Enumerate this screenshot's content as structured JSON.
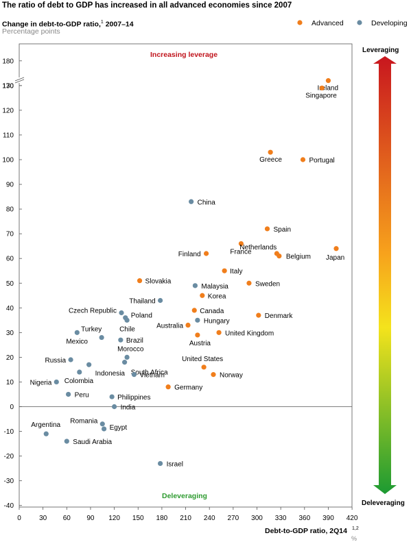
{
  "header": {
    "title": "The ratio of debt to GDP has increased in all advanced economies since 2007",
    "subtitle": "Change in debt-to-GDP ratio,",
    "subtitle_sup": "1",
    "subtitle_tail": " 2007–14",
    "unit": "Percentage points"
  },
  "legend": {
    "advanced": "Advanced",
    "developing": "Developing",
    "placement": "top-right"
  },
  "annotations": {
    "increasing": "Increasing leverage",
    "deleveraging": "Deleveraging",
    "arrow_top": "Leveraging",
    "arrow_bottom": "Deleveraging"
  },
  "colors": {
    "advanced": "#f07e1c",
    "developing": "#6a8ca2",
    "arrow_top": "#c8161e",
    "arrow_mid": "#f7a21c",
    "arrow_low": "#f4e31c",
    "arrow_bottom": "#1c9a32"
  },
  "chart_data": {
    "type": "scatter",
    "xlabel": "Debt-to-GDP ratio, 2Q14",
    "xlabel_sup": "1,2",
    "xunit": "%",
    "ylabel": "Percentage points",
    "xlim": [
      0,
      420
    ],
    "ylim": [
      -40,
      180
    ],
    "y_axis_break": [
      130,
      170
    ],
    "grid": false,
    "x_ticks": [
      "0",
      "30",
      "60",
      "90",
      "120",
      "150",
      "180",
      "210",
      "240",
      "270",
      "300",
      "330",
      "360",
      "390",
      "420"
    ],
    "y_ticks": [
      "180",
      "170",
      "130",
      "120",
      "110",
      "100",
      "90",
      "80",
      "70",
      "60",
      "50",
      "40",
      "30",
      "20",
      "10",
      "0",
      "-10",
      "-20",
      "-30",
      "-40"
    ],
    "series": [
      {
        "name": "Advanced",
        "points": [
          {
            "label": "Ireland",
            "x": 390,
            "y": 172
          },
          {
            "label": "Singapore",
            "x": 382,
            "y": 129
          },
          {
            "label": "Greece",
            "x": 317,
            "y": 103
          },
          {
            "label": "Portugal",
            "x": 358,
            "y": 100
          },
          {
            "label": "Spain",
            "x": 313,
            "y": 72
          },
          {
            "label": "France",
            "x": 280,
            "y": 66
          },
          {
            "label": "Netherlands",
            "x": 325,
            "y": 62
          },
          {
            "label": "Belgium",
            "x": 328,
            "y": 61
          },
          {
            "label": "Japan",
            "x": 400,
            "y": 64
          },
          {
            "label": "Finland",
            "x": 236,
            "y": 62
          },
          {
            "label": "Italy",
            "x": 259,
            "y": 55
          },
          {
            "label": "Sweden",
            "x": 290,
            "y": 50
          },
          {
            "label": "Slovakia",
            "x": 152,
            "y": 51
          },
          {
            "label": "Korea",
            "x": 231,
            "y": 45
          },
          {
            "label": "Canada",
            "x": 221,
            "y": 39
          },
          {
            "label": "Denmark",
            "x": 302,
            "y": 37
          },
          {
            "label": "Australia",
            "x": 213,
            "y": 33
          },
          {
            "label": "Austria",
            "x": 225,
            "y": 29
          },
          {
            "label": "United Kingdom",
            "x": 252,
            "y": 30
          },
          {
            "label": "United States",
            "x": 233,
            "y": 16
          },
          {
            "label": "Norway",
            "x": 245,
            "y": 13
          },
          {
            "label": "Germany",
            "x": 188,
            "y": 8
          }
        ]
      },
      {
        "name": "Developing",
        "points": [
          {
            "label": "China",
            "x": 217,
            "y": 83
          },
          {
            "label": "Malaysia",
            "x": 222,
            "y": 49
          },
          {
            "label": "Thailand",
            "x": 178,
            "y": 43
          },
          {
            "label": "Czech Republic",
            "x": 129,
            "y": 38
          },
          {
            "label": "Poland",
            "x": 134,
            "y": 36
          },
          {
            "label": "Chile",
            "x": 136,
            "y": 35
          },
          {
            "label": "Hungary",
            "x": 225,
            "y": 35
          },
          {
            "label": "Mexico",
            "x": 73,
            "y": 30
          },
          {
            "label": "Turkey",
            "x": 104,
            "y": 28
          },
          {
            "label": "Brazil",
            "x": 128,
            "y": 27
          },
          {
            "label": "Russia",
            "x": 65,
            "y": 19
          },
          {
            "label": "Morocco",
            "x": 136,
            "y": 20
          },
          {
            "label": "South Africa",
            "x": 133,
            "y": 18
          },
          {
            "label": "Indonesia",
            "x": 88,
            "y": 17
          },
          {
            "label": "Colombia",
            "x": 76,
            "y": 14
          },
          {
            "label": "Vietnam",
            "x": 145,
            "y": 13
          },
          {
            "label": "Nigeria",
            "x": 47,
            "y": 10
          },
          {
            "label": "Peru",
            "x": 62,
            "y": 5
          },
          {
            "label": "Philippines",
            "x": 117,
            "y": 4
          },
          {
            "label": "India",
            "x": 120,
            "y": 0
          },
          {
            "label": "Romania",
            "x": 105,
            "y": -7
          },
          {
            "label": "Egypt",
            "x": 107,
            "y": -9
          },
          {
            "label": "Argentina",
            "x": 34,
            "y": -11
          },
          {
            "label": "Saudi Arabia",
            "x": 60,
            "y": -14
          },
          {
            "label": "Israel",
            "x": 178,
            "y": -23
          }
        ]
      }
    ]
  }
}
